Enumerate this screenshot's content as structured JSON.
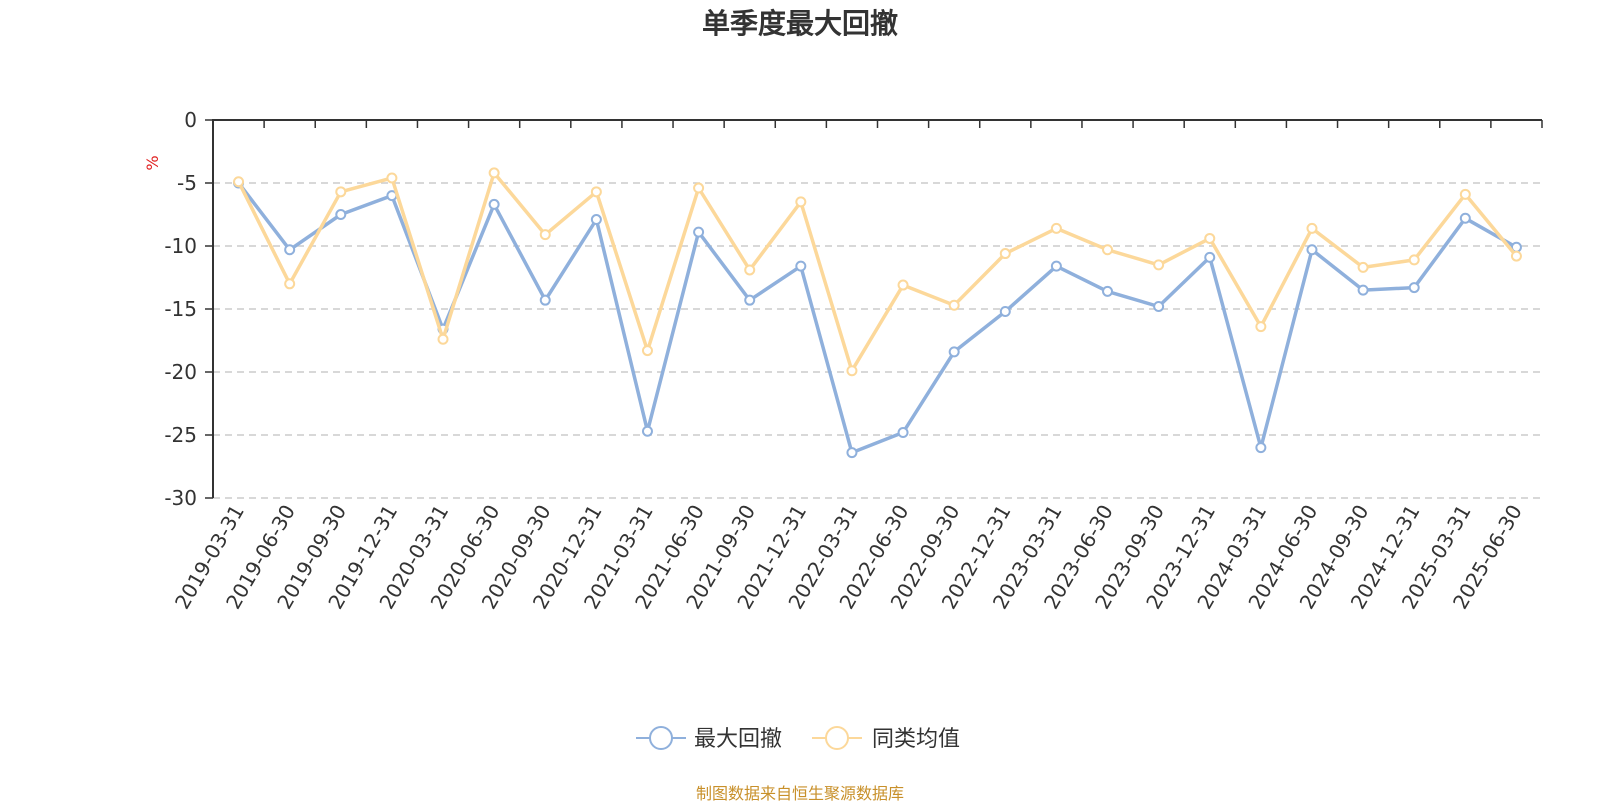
{
  "source_note": "制图数据来自恒生聚源数据库",
  "colors": {
    "series_1": "#8fb0dc",
    "series_2": "#fcd89a",
    "unit": "#e02020",
    "grid": "#cccccc",
    "axis": "#333333",
    "source": "#c8902a"
  },
  "chart_data": {
    "type": "line",
    "title": "单季度最大回撤",
    "ylabel": "%",
    "xlabel": "",
    "ylim": [
      -30,
      0
    ],
    "yticks": [
      0,
      -5,
      -10,
      -15,
      -20,
      -25,
      -30
    ],
    "grid": true,
    "legend_position": "bottom-center",
    "categories": [
      "2019-03-31",
      "2019-06-30",
      "2019-09-30",
      "2019-12-31",
      "2020-03-31",
      "2020-06-30",
      "2020-09-30",
      "2020-12-31",
      "2021-03-31",
      "2021-06-30",
      "2021-09-30",
      "2021-12-31",
      "2022-03-31",
      "2022-06-30",
      "2022-09-30",
      "2022-12-31",
      "2023-03-31",
      "2023-06-30",
      "2023-09-30",
      "2023-12-31",
      "2024-03-31",
      "2024-06-30",
      "2024-09-30",
      "2024-12-31",
      "2025-03-31",
      "2025-06-30"
    ],
    "series": [
      {
        "name": "最大回撤",
        "color": "#8fb0dc",
        "values": [
          -5.0,
          -10.3,
          -7.5,
          -6.0,
          -16.6,
          -6.7,
          -14.3,
          -7.9,
          -24.7,
          -8.9,
          -14.3,
          -11.6,
          -26.4,
          -24.8,
          -18.4,
          -15.2,
          -11.6,
          -13.6,
          -14.8,
          -10.9,
          -26.0,
          -10.3,
          -13.5,
          -13.3,
          -7.8,
          -10.1
        ]
      },
      {
        "name": "同类均值",
        "color": "#fcd89a",
        "values": [
          -4.9,
          -13.0,
          -5.7,
          -4.6,
          -17.4,
          -4.2,
          -9.1,
          -5.7,
          -18.3,
          -5.4,
          -11.9,
          -6.5,
          -19.9,
          -13.1,
          -14.7,
          -10.6,
          -8.6,
          -10.3,
          -11.5,
          -9.4,
          -16.4,
          -8.6,
          -11.7,
          -11.1,
          -5.9,
          -10.8
        ]
      }
    ]
  }
}
